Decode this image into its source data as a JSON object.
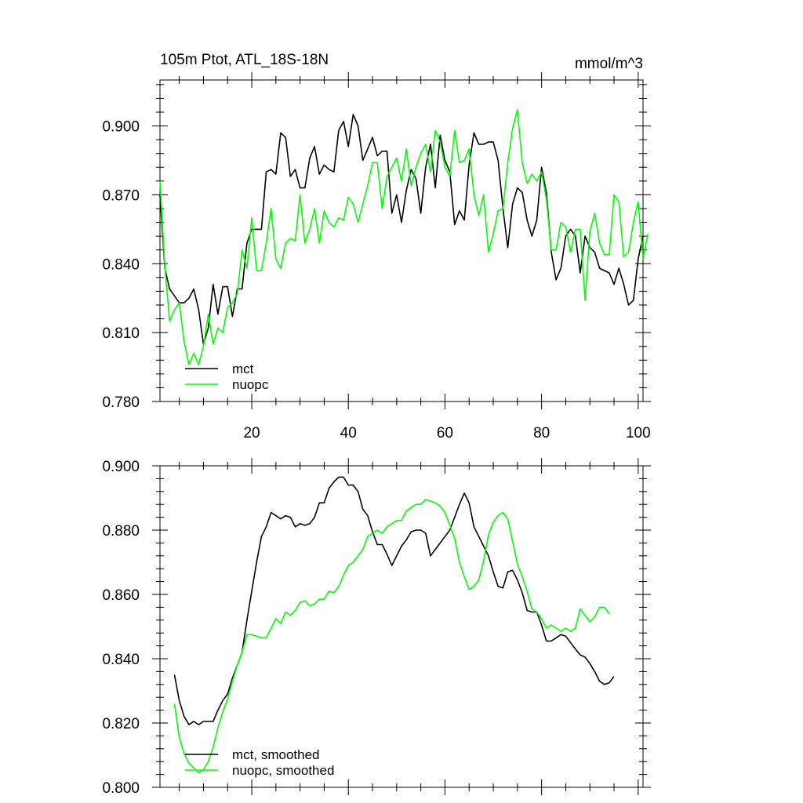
{
  "chart_data": [
    {
      "type": "line",
      "title": "105m Ptot, ATL_18S-18N",
      "units": "mmol/m^3",
      "xlim": [
        1,
        101
      ],
      "ylim": [
        0.78,
        0.92
      ],
      "x_ticks": [
        20,
        40,
        60,
        80,
        100
      ],
      "x_tick_labels": [
        "20",
        "40",
        "60",
        "80",
        "100"
      ],
      "y_ticks": [
        0.78,
        0.81,
        0.84,
        0.87,
        0.9
      ],
      "y_tick_labels": [
        "0.780",
        "0.810",
        "0.840",
        "0.870",
        "0.900"
      ],
      "legend_position": "bottom-left",
      "series": [
        {
          "name": "mct",
          "color": "#000000",
          "x_start": 1,
          "values": [
            0.87,
            0.838,
            0.829,
            0.826,
            0.823,
            0.823,
            0.825,
            0.829,
            0.82,
            0.805,
            0.812,
            0.831,
            0.818,
            0.83,
            0.83,
            0.817,
            0.829,
            0.829,
            0.849,
            0.855,
            0.855,
            0.855,
            0.88,
            0.881,
            0.879,
            0.897,
            0.895,
            0.878,
            0.881,
            0.873,
            0.873,
            0.886,
            0.891,
            0.879,
            0.883,
            0.881,
            0.88,
            0.898,
            0.902,
            0.891,
            0.905,
            0.9,
            0.885,
            0.89,
            0.895,
            0.887,
            0.889,
            0.889,
            0.862,
            0.87,
            0.858,
            0.872,
            0.881,
            0.877,
            0.862,
            0.882,
            0.892,
            0.873,
            0.896,
            0.885,
            0.88,
            0.857,
            0.863,
            0.859,
            0.883,
            0.897,
            0.892,
            0.892,
            0.893,
            0.893,
            0.885,
            0.864,
            0.847,
            0.866,
            0.873,
            0.871,
            0.859,
            0.852,
            0.859,
            0.882,
            0.871,
            0.845,
            0.833,
            0.838,
            0.852,
            0.855,
            0.852,
            0.836,
            0.852,
            0.847,
            0.845,
            0.838,
            0.837,
            0.836,
            0.831,
            0.838,
            0.831,
            0.822,
            0.824,
            0.842,
            0.852
          ]
        },
        {
          "name": "nuopc",
          "color": "#00ff00",
          "x_start": 1,
          "values": [
            0.876,
            0.839,
            0.815,
            0.82,
            0.823,
            0.806,
            0.796,
            0.801,
            0.796,
            0.804,
            0.818,
            0.805,
            0.812,
            0.81,
            0.821,
            0.823,
            0.827,
            0.846,
            0.838,
            0.86,
            0.837,
            0.837,
            0.849,
            0.864,
            0.842,
            0.838,
            0.849,
            0.851,
            0.85,
            0.87,
            0.849,
            0.855,
            0.864,
            0.849,
            0.863,
            0.858,
            0.856,
            0.86,
            0.859,
            0.869,
            0.866,
            0.858,
            0.866,
            0.874,
            0.884,
            0.884,
            0.864,
            0.878,
            0.882,
            0.886,
            0.876,
            0.89,
            0.874,
            0.882,
            0.888,
            0.892,
            0.88,
            0.898,
            0.893,
            0.882,
            0.878,
            0.898,
            0.884,
            0.885,
            0.89,
            0.87,
            0.861,
            0.87,
            0.845,
            0.853,
            0.863,
            0.864,
            0.884,
            0.899,
            0.907,
            0.884,
            0.875,
            0.879,
            0.876,
            0.88,
            0.868,
            0.846,
            0.846,
            0.858,
            0.856,
            0.845,
            0.855,
            0.855,
            0.824,
            0.854,
            0.862,
            0.849,
            0.844,
            0.844,
            0.87,
            0.867,
            0.843,
            0.845,
            0.858,
            0.867,
            0.842,
            0.853
          ]
        }
      ]
    },
    {
      "type": "line",
      "title": "",
      "units": "",
      "xlim": [
        1,
        101
      ],
      "ylim": [
        0.8,
        0.9
      ],
      "x_ticks": [
        20,
        40,
        60,
        80,
        100
      ],
      "x_tick_labels": [],
      "y_ticks": [
        0.8,
        0.82,
        0.84,
        0.86,
        0.88,
        0.9
      ],
      "y_tick_labels": [
        "0.800",
        "0.820",
        "0.840",
        "0.860",
        "0.880",
        "0.900"
      ],
      "legend_position": "bottom-left",
      "series": [
        {
          "name": "mct, smoothed",
          "color": "#000000",
          "x_start": 4,
          "values": [
            0.835,
            0.827,
            0.822,
            0.8195,
            0.8205,
            0.8195,
            0.8205,
            0.8205,
            0.8205,
            0.824,
            0.827,
            0.829,
            0.834,
            0.838,
            0.842,
            0.852,
            0.861,
            0.87,
            0.878,
            0.881,
            0.8855,
            0.8845,
            0.8835,
            0.8845,
            0.884,
            0.881,
            0.882,
            0.8815,
            0.882,
            0.884,
            0.8885,
            0.8885,
            0.893,
            0.895,
            0.8965,
            0.8965,
            0.894,
            0.894,
            0.892,
            0.8865,
            0.8845,
            0.8795,
            0.8755,
            0.8755,
            0.8725,
            0.869,
            0.872,
            0.875,
            0.877,
            0.8795,
            0.88,
            0.88,
            0.879,
            0.872,
            0.874,
            0.876,
            0.878,
            0.88,
            0.884,
            0.888,
            0.8915,
            0.8885,
            0.881,
            0.878,
            0.875,
            0.872,
            0.867,
            0.8625,
            0.862,
            0.867,
            0.8675,
            0.8645,
            0.8605,
            0.855,
            0.8545,
            0.8545,
            0.8505,
            0.8455,
            0.8455,
            0.8465,
            0.8475,
            0.847,
            0.845,
            0.843,
            0.8412,
            0.8405,
            0.8385,
            0.836,
            0.833,
            0.832,
            0.8325,
            0.8345
          ]
        },
        {
          "name": "nuopc, smoothed",
          "color": "#00ff00",
          "x_start": 4,
          "values": [
            0.826,
            0.8155,
            0.8105,
            0.8075,
            0.806,
            0.8045,
            0.8055,
            0.808,
            0.8125,
            0.8185,
            0.8235,
            0.8275,
            0.833,
            0.838,
            0.842,
            0.8475,
            0.8475,
            0.847,
            0.8465,
            0.8465,
            0.8495,
            0.8525,
            0.851,
            0.8545,
            0.8535,
            0.855,
            0.8575,
            0.858,
            0.8565,
            0.857,
            0.8585,
            0.8585,
            0.861,
            0.8605,
            0.8625,
            0.866,
            0.869,
            0.87,
            0.872,
            0.874,
            0.878,
            0.879,
            0.88,
            0.879,
            0.881,
            0.882,
            0.883,
            0.883,
            0.886,
            0.887,
            0.888,
            0.888,
            0.8895,
            0.889,
            0.8885,
            0.8875,
            0.8855,
            0.8815,
            0.8775,
            0.87,
            0.8655,
            0.8615,
            0.8625,
            0.8645,
            0.8705,
            0.8785,
            0.8825,
            0.8845,
            0.8855,
            0.8835,
            0.8765,
            0.8695,
            0.8655,
            0.861,
            0.8555,
            0.8545,
            0.8525,
            0.8495,
            0.8505,
            0.8495,
            0.8485,
            0.8495,
            0.8485,
            0.8495,
            0.8555,
            0.8535,
            0.8515,
            0.853,
            0.856,
            0.856,
            0.854
          ]
        }
      ]
    }
  ]
}
